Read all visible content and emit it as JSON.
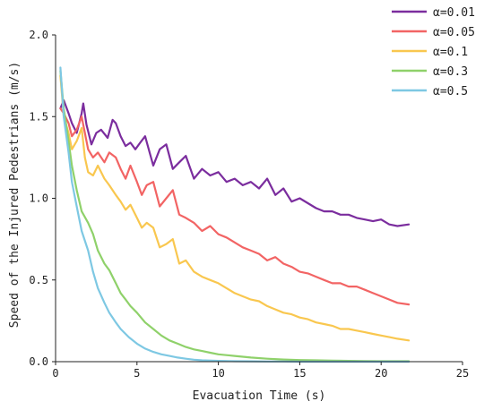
{
  "chart_data": {
    "type": "line",
    "xlabel": "Evacuation Time (s)",
    "ylabel": "Speed of the Injured Pedestrians (m/s)",
    "xlim": [
      0,
      25
    ],
    "ylim": [
      0,
      2.0
    ],
    "xticks": [
      0,
      5,
      10,
      15,
      20,
      25
    ],
    "yticks": [
      0.0,
      0.5,
      1.0,
      1.5,
      2.0
    ],
    "xtick_labels": [
      "0",
      "5",
      "10",
      "15",
      "20",
      "25"
    ],
    "ytick_labels": [
      "0.0",
      "0.5",
      "1.0",
      "1.5",
      "2.0"
    ],
    "grid": false,
    "legend_position": "top-right",
    "series": [
      {
        "name": "α=0.01",
        "color": "#7b2d9e",
        "x": [
          0.3,
          0.5,
          0.8,
          1.0,
          1.3,
          1.6,
          1.7,
          1.9,
          2.2,
          2.5,
          2.8,
          3.2,
          3.5,
          3.7,
          4.0,
          4.3,
          4.6,
          4.9,
          5.2,
          5.5,
          6.0,
          6.4,
          6.8,
          7.2,
          7.6,
          8.0,
          8.5,
          9.0,
          9.5,
          10.0,
          10.5,
          11.0,
          11.5,
          12.0,
          12.5,
          13.0,
          13.5,
          14.0,
          14.5,
          15.0,
          15.5,
          16.0,
          16.5,
          17.0,
          17.5,
          18.0,
          18.5,
          19.0,
          19.5,
          20.0,
          20.5,
          21.0,
          21.7
        ],
        "y": [
          1.55,
          1.6,
          1.52,
          1.46,
          1.4,
          1.52,
          1.58,
          1.45,
          1.33,
          1.4,
          1.42,
          1.37,
          1.48,
          1.46,
          1.38,
          1.32,
          1.34,
          1.3,
          1.34,
          1.38,
          1.2,
          1.3,
          1.33,
          1.18,
          1.22,
          1.26,
          1.12,
          1.18,
          1.14,
          1.16,
          1.1,
          1.12,
          1.08,
          1.1,
          1.06,
          1.12,
          1.02,
          1.06,
          0.98,
          1.0,
          0.97,
          0.94,
          0.92,
          0.92,
          0.9,
          0.9,
          0.88,
          0.87,
          0.86,
          0.87,
          0.84,
          0.83,
          0.84
        ]
      },
      {
        "name": "α=0.05",
        "color": "#f26464",
        "x": [
          0.3,
          0.5,
          0.8,
          1.0,
          1.3,
          1.6,
          1.8,
          2.0,
          2.3,
          2.6,
          3.0,
          3.3,
          3.7,
          4.0,
          4.3,
          4.6,
          5.0,
          5.3,
          5.6,
          6.0,
          6.4,
          6.8,
          7.2,
          7.6,
          8.0,
          8.5,
          9.0,
          9.5,
          10.0,
          10.5,
          11.0,
          11.5,
          12.0,
          12.5,
          13.0,
          13.5,
          14.0,
          14.5,
          15.0,
          15.5,
          16.0,
          16.5,
          17.0,
          17.5,
          18.0,
          18.5,
          19.0,
          19.5,
          20.0,
          20.5,
          21.0,
          21.7
        ],
        "y": [
          1.55,
          1.52,
          1.46,
          1.38,
          1.42,
          1.5,
          1.4,
          1.3,
          1.25,
          1.28,
          1.22,
          1.28,
          1.25,
          1.18,
          1.12,
          1.2,
          1.1,
          1.02,
          1.08,
          1.1,
          0.95,
          1.0,
          1.05,
          0.9,
          0.88,
          0.85,
          0.8,
          0.83,
          0.78,
          0.76,
          0.73,
          0.7,
          0.68,
          0.66,
          0.62,
          0.64,
          0.6,
          0.58,
          0.55,
          0.54,
          0.52,
          0.5,
          0.48,
          0.48,
          0.46,
          0.46,
          0.44,
          0.42,
          0.4,
          0.38,
          0.36,
          0.35
        ]
      },
      {
        "name": "α=0.1",
        "color": "#f9c74f",
        "x": [
          0.3,
          0.5,
          0.8,
          1.0,
          1.3,
          1.6,
          1.8,
          2.0,
          2.3,
          2.6,
          3.0,
          3.3,
          3.7,
          4.0,
          4.3,
          4.6,
          5.0,
          5.3,
          5.6,
          6.0,
          6.4,
          6.8,
          7.2,
          7.6,
          8.0,
          8.5,
          9.0,
          9.5,
          10.0,
          10.5,
          11.0,
          11.5,
          12.0,
          12.5,
          13.0,
          13.5,
          14.0,
          14.5,
          15.0,
          15.5,
          16.0,
          16.5,
          17.0,
          17.5,
          18.0,
          18.5,
          19.0,
          19.5,
          20.0,
          20.5,
          21.0,
          21.7
        ],
        "y": [
          1.75,
          1.5,
          1.4,
          1.3,
          1.35,
          1.43,
          1.25,
          1.16,
          1.14,
          1.2,
          1.12,
          1.08,
          1.02,
          0.98,
          0.93,
          0.96,
          0.88,
          0.82,
          0.85,
          0.82,
          0.7,
          0.72,
          0.75,
          0.6,
          0.62,
          0.55,
          0.52,
          0.5,
          0.48,
          0.45,
          0.42,
          0.4,
          0.38,
          0.37,
          0.34,
          0.32,
          0.3,
          0.29,
          0.27,
          0.26,
          0.24,
          0.23,
          0.22,
          0.2,
          0.2,
          0.19,
          0.18,
          0.17,
          0.16,
          0.15,
          0.14,
          0.13
        ]
      },
      {
        "name": "α=0.3",
        "color": "#8fd16a",
        "x": [
          0.3,
          0.5,
          0.8,
          1.0,
          1.3,
          1.6,
          2.0,
          2.3,
          2.6,
          3.0,
          3.3,
          3.7,
          4.0,
          4.3,
          4.6,
          5.0,
          5.5,
          6.0,
          6.5,
          7.0,
          7.5,
          8.0,
          8.5,
          9.0,
          9.5,
          10.0,
          11.0,
          12.0,
          13.0,
          14.0,
          15.0,
          16.0,
          17.0,
          18.0,
          19.0,
          20.0,
          21.0,
          21.7
        ],
        "y": [
          1.78,
          1.55,
          1.35,
          1.2,
          1.05,
          0.92,
          0.85,
          0.78,
          0.68,
          0.6,
          0.56,
          0.48,
          0.42,
          0.38,
          0.34,
          0.3,
          0.24,
          0.2,
          0.16,
          0.13,
          0.11,
          0.09,
          0.075,
          0.065,
          0.055,
          0.045,
          0.035,
          0.025,
          0.018,
          0.013,
          0.01,
          0.008,
          0.006,
          0.005,
          0.004,
          0.003,
          0.003,
          0.003
        ]
      },
      {
        "name": "α=0.5",
        "color": "#7ec8e3",
        "x": [
          0.3,
          0.5,
          0.8,
          1.0,
          1.3,
          1.6,
          2.0,
          2.3,
          2.6,
          3.0,
          3.3,
          3.7,
          4.0,
          4.5,
          5.0,
          5.5,
          6.0,
          6.5,
          7.0,
          7.5,
          8.0,
          8.5,
          9.0,
          10.0,
          11.0,
          12.0,
          13.0,
          14.0,
          15.0,
          16.0,
          18.0,
          20.0,
          21.7
        ],
        "y": [
          1.8,
          1.5,
          1.28,
          1.1,
          0.95,
          0.8,
          0.68,
          0.55,
          0.45,
          0.36,
          0.3,
          0.24,
          0.2,
          0.15,
          0.11,
          0.08,
          0.06,
          0.045,
          0.035,
          0.025,
          0.018,
          0.012,
          0.008,
          0.005,
          0.003,
          0.002,
          0.001,
          0.001,
          0.0,
          0.0,
          0.0,
          0.0,
          0.0
        ]
      }
    ]
  }
}
